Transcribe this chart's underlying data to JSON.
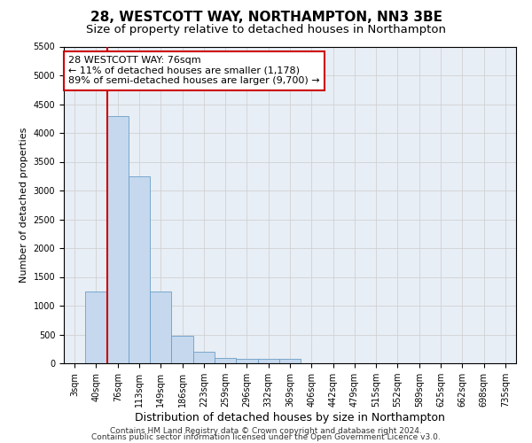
{
  "title": "28, WESTCOTT WAY, NORTHAMPTON, NN3 3BE",
  "subtitle": "Size of property relative to detached houses in Northampton",
  "xlabel": "Distribution of detached houses by size in Northampton",
  "ylabel": "Number of detached properties",
  "categories": [
    "3sqm",
    "40sqm",
    "76sqm",
    "113sqm",
    "149sqm",
    "186sqm",
    "223sqm",
    "259sqm",
    "296sqm",
    "332sqm",
    "369sqm",
    "406sqm",
    "442sqm",
    "479sqm",
    "515sqm",
    "552sqm",
    "589sqm",
    "625sqm",
    "662sqm",
    "698sqm",
    "735sqm"
  ],
  "values": [
    0,
    1250,
    4300,
    3250,
    1250,
    475,
    200,
    100,
    75,
    75,
    75,
    0,
    0,
    0,
    0,
    0,
    0,
    0,
    0,
    0,
    0
  ],
  "bar_color": "#c5d8ee",
  "bar_edge_color": "#6b9ec8",
  "red_line_x": 1.5,
  "annotation_text": "28 WESTCOTT WAY: 76sqm\n← 11% of detached houses are smaller (1,178)\n89% of semi-detached houses are larger (9,700) →",
  "annotation_box_color": "#ffffff",
  "annotation_box_edge": "#cc0000",
  "ylim": [
    0,
    5500
  ],
  "yticks": [
    0,
    500,
    1000,
    1500,
    2000,
    2500,
    3000,
    3500,
    4000,
    4500,
    5000,
    5500
  ],
  "grid_color": "#cccccc",
  "bg_color": "#e8eef5",
  "footer_line1": "Contains HM Land Registry data © Crown copyright and database right 2024.",
  "footer_line2": "Contains public sector information licensed under the Open Government Licence v3.0.",
  "title_fontsize": 11,
  "subtitle_fontsize": 9.5,
  "xlabel_fontsize": 9,
  "ylabel_fontsize": 8,
  "tick_fontsize": 7
}
